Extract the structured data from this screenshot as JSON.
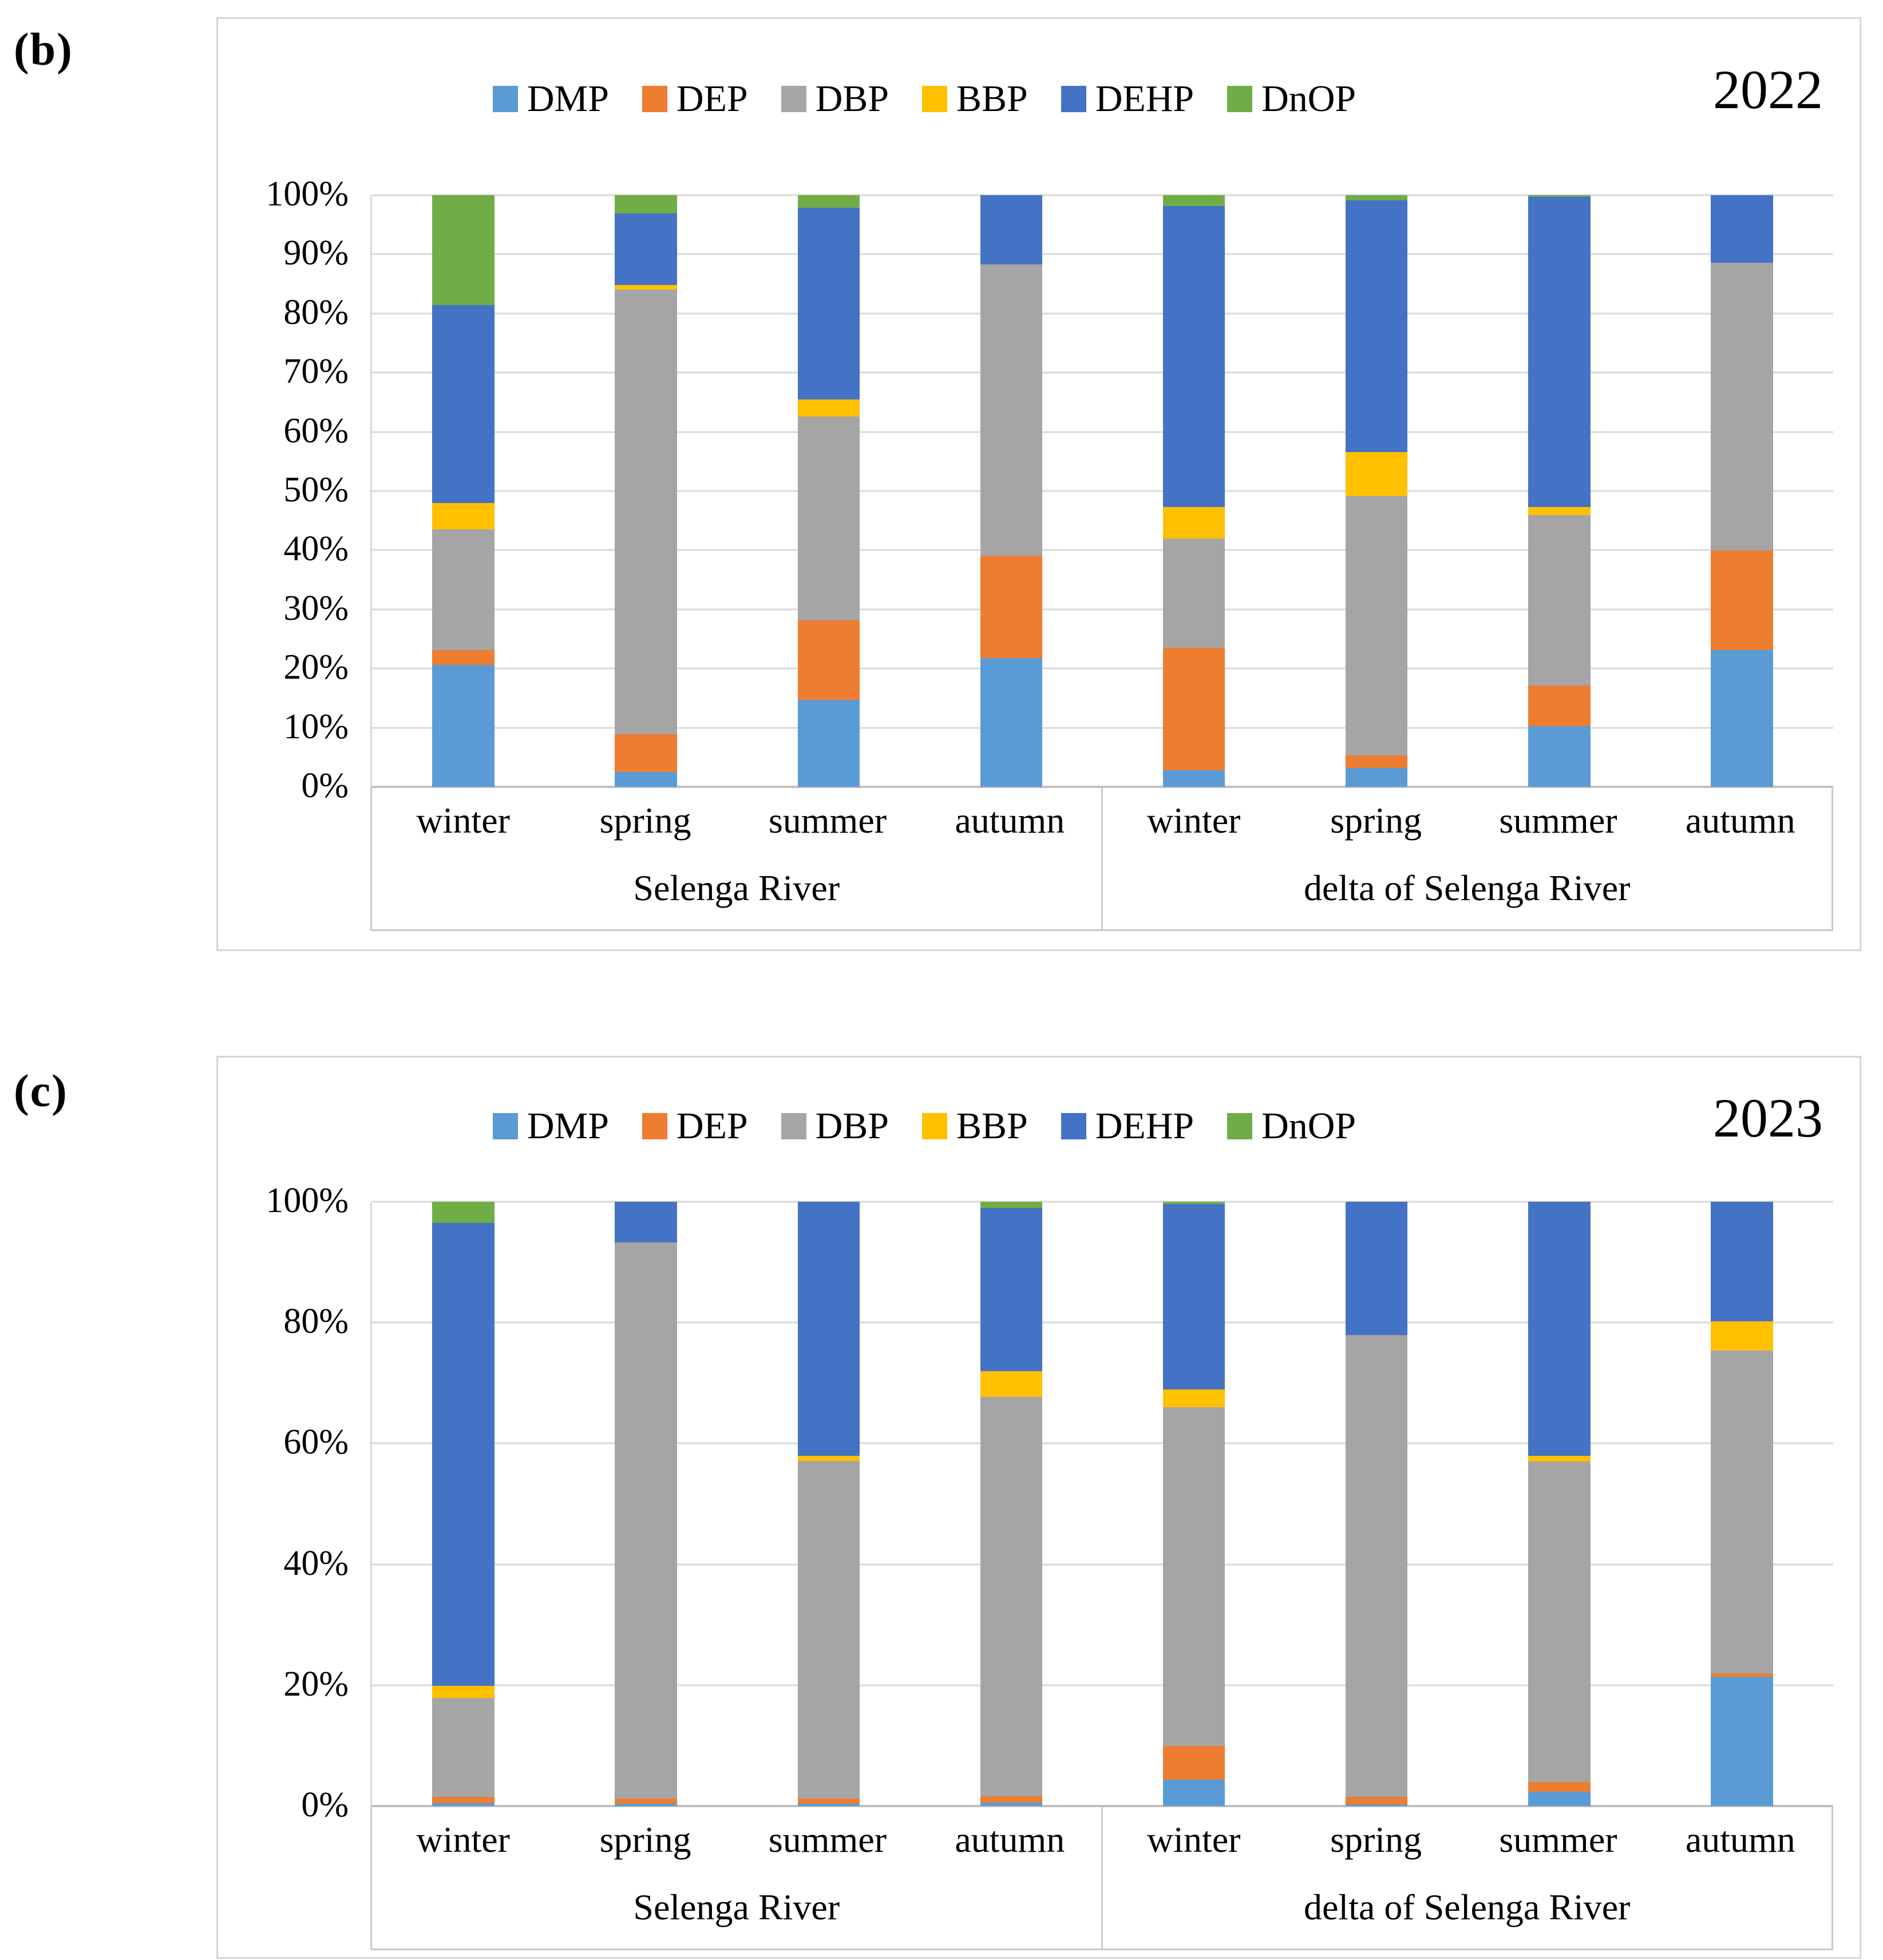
{
  "figure": {
    "panel_b_tag": "(b)",
    "panel_c_tag": "(c)",
    "year_2022": "2022",
    "year_2023": "2023"
  },
  "chart_data": [
    {
      "type": "bar",
      "stacked": true,
      "percent": true,
      "panel_label": "(b)",
      "title": "2022",
      "legend_position": "top-center",
      "grid": true,
      "ylim": [
        0,
        100
      ],
      "y_ticks": [
        "100%",
        "90%",
        "80%",
        "70%",
        "60%",
        "50%",
        "40%",
        "30%",
        "20%",
        "10%",
        "0%"
      ],
      "categories": [
        "winter",
        "spring",
        "summer",
        "autumn",
        "winter",
        "spring",
        "summer",
        "autumn"
      ],
      "group_labels": [
        "Selenga River",
        "delta of Selenga River"
      ],
      "series": [
        {
          "name": "DMP",
          "color": "#5B9BD5",
          "values": [
            20.6,
            2.5,
            14.7,
            21.8,
            2.8,
            3.2,
            10.3,
            23.1
          ]
        },
        {
          "name": "DEP",
          "color": "#ED7D31",
          "values": [
            2.5,
            6.4,
            13.4,
            17.3,
            20.7,
            2.1,
            6.8,
            16.8
          ]
        },
        {
          "name": "DBP",
          "color": "#A5A5A5",
          "values": [
            20.4,
            75.1,
            34.5,
            49.2,
            18.5,
            43.8,
            28.8,
            48.7
          ]
        },
        {
          "name": "BBP",
          "color": "#FFC000",
          "values": [
            4.5,
            0.8,
            2.9,
            0,
            5.3,
            7.5,
            1.4,
            0
          ]
        },
        {
          "name": "DEHP",
          "color": "#4472C4",
          "values": [
            33.4,
            12.1,
            32.4,
            11.7,
            50.9,
            42.5,
            52.4,
            11.4
          ]
        },
        {
          "name": "DnOP",
          "color": "#70AD47",
          "values": [
            18.6,
            3.1,
            2.1,
            0,
            1.8,
            0.9,
            0.3,
            0
          ]
        }
      ]
    },
    {
      "type": "bar",
      "stacked": true,
      "percent": true,
      "panel_label": "(c)",
      "title": "2023",
      "legend_position": "top-center",
      "grid": true,
      "ylim": [
        0,
        100
      ],
      "y_ticks": [
        "100%",
        "80%",
        "60%",
        "40%",
        "20%",
        "0%"
      ],
      "categories": [
        "winter",
        "spring",
        "summer",
        "autumn",
        "winter",
        "spring",
        "summer",
        "autumn"
      ],
      "group_labels": [
        "Selenga River",
        "delta of Selenga River"
      ],
      "series": [
        {
          "name": "DMP",
          "color": "#5B9BD5",
          "values": [
            0.5,
            0.4,
            0.4,
            0.6,
            4.4,
            0.3,
            2.4,
            21.4
          ]
        },
        {
          "name": "DEP",
          "color": "#ED7D31",
          "values": [
            1.0,
            0.8,
            0.8,
            1.0,
            5.5,
            1.2,
            1.6,
            0.6
          ]
        },
        {
          "name": "DBP",
          "color": "#A5A5A5",
          "values": [
            16.4,
            92.1,
            55.9,
            66.1,
            56.1,
            76.4,
            53.0,
            53.4
          ]
        },
        {
          "name": "BBP",
          "color": "#FFC000",
          "values": [
            2.0,
            0,
            0.9,
            4.3,
            2.9,
            0,
            1.0,
            4.8
          ]
        },
        {
          "name": "DEHP",
          "color": "#4472C4",
          "values": [
            76.6,
            6.7,
            42.0,
            27.0,
            30.7,
            22.1,
            42.0,
            19.8
          ]
        },
        {
          "name": "DnOP",
          "color": "#70AD47",
          "values": [
            3.5,
            0,
            0,
            1.0,
            0.4,
            0,
            0,
            0
          ]
        }
      ]
    }
  ]
}
